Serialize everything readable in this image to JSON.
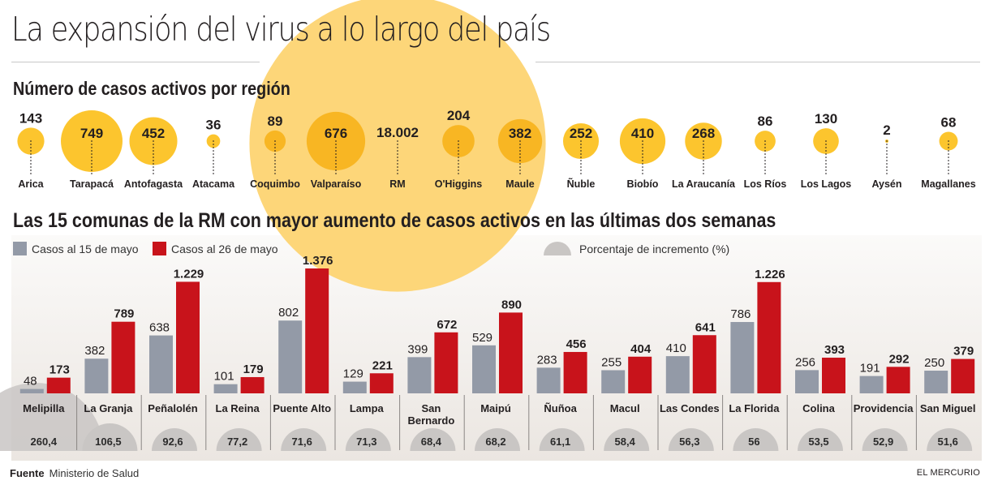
{
  "title": "La expansión del virus a lo largo del país",
  "colors": {
    "bubble": "#fcc52e",
    "bubble_rm": "#fdd679",
    "bubble_on_rm": "#f8b623",
    "bar_15": "#939aa7",
    "bar_26": "#c8131b",
    "pct_semicircle": "#c9c6c4"
  },
  "chart_data": [
    {
      "type": "bubble",
      "title": "Número de casos activos por región",
      "categories": [
        "Arica",
        "Tarapacá",
        "Antofagasta",
        "Atacama",
        "Coquimbo",
        "Valparaíso",
        "RM",
        "O'Higgins",
        "Maule",
        "Ñuble",
        "Biobío",
        "La Araucanía",
        "Los Ríos",
        "Los Lagos",
        "Aysén",
        "Magallanes"
      ],
      "values": [
        143,
        749,
        452,
        36,
        89,
        676,
        18002,
        204,
        382,
        252,
        410,
        268,
        86,
        130,
        2,
        68
      ],
      "value_labels": [
        "143",
        "749",
        "452",
        "36",
        "89",
        "676",
        "18.002",
        "204",
        "382",
        "252",
        "410",
        "268",
        "86",
        "130",
        "2",
        "68"
      ]
    },
    {
      "type": "bar",
      "title": "Las 15 comunas de la RM con mayor aumento de casos activos en las últimas dos semanas",
      "categories": [
        "Melipilla",
        "La Granja",
        "Peñalolén",
        "La Reina",
        "Puente Alto",
        "Lampa",
        "San Bernardo",
        "Maipú",
        "Ñuñoa",
        "Macul",
        "Las Condes",
        "La Florida",
        "Colina",
        "Providencia",
        "San Miguel"
      ],
      "series": [
        {
          "name": "Casos al 15 de mayo",
          "values": [
            48,
            382,
            638,
            101,
            802,
            129,
            399,
            529,
            283,
            255,
            410,
            786,
            256,
            191,
            250
          ],
          "value_labels": [
            "48",
            "382",
            "638",
            "101",
            "802",
            "129",
            "399",
            "529",
            "283",
            "255",
            "410",
            "786",
            "256",
            "191",
            "250"
          ]
        },
        {
          "name": "Casos al 26 de mayo",
          "values": [
            173,
            789,
            1229,
            179,
            1376,
            221,
            672,
            890,
            456,
            404,
            641,
            1226,
            393,
            292,
            379
          ],
          "value_labels": [
            "173",
            "789",
            "1.229",
            "179",
            "1.376",
            "221",
            "672",
            "890",
            "456",
            "404",
            "641",
            "1.226",
            "393",
            "292",
            "379"
          ]
        }
      ],
      "secondary": {
        "name": "Porcentaje de incremento (%)",
        "values": [
          260.4,
          106.5,
          92.6,
          77.2,
          71.6,
          71.3,
          68.4,
          68.2,
          61.1,
          58.4,
          56.3,
          56,
          53.5,
          52.9,
          51.6
        ],
        "value_labels": [
          "260,4",
          "106,5",
          "92,6",
          "77,2",
          "71,6",
          "71,3",
          "68,4",
          "68,2",
          "61,1",
          "58,4",
          "56,3",
          "56",
          "53,5",
          "52,9",
          "51,6"
        ]
      },
      "ylim": [
        0,
        1376
      ],
      "grid": false,
      "legend_position": "top-left"
    }
  ],
  "legend": {
    "item_15": "Casos al 15 de mayo",
    "item_26": "Casos al 26 de mayo",
    "item_pct": "Porcentaje de incremento (%)"
  },
  "footer": {
    "source_label": "Fuente",
    "source": "Ministerio de Salud",
    "brand": "EL MERCURIO"
  }
}
